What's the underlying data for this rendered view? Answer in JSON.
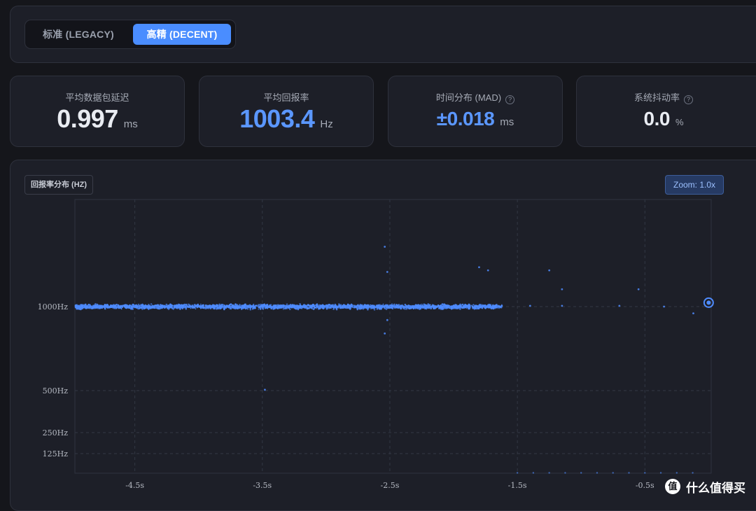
{
  "mode_switch": {
    "legacy_label": "标准 (LEGACY)",
    "decent_label": "高精 (DECENT)",
    "selected": "decent"
  },
  "stats": {
    "latency": {
      "label": "平均数据包延迟",
      "value": "0.997",
      "unit": "ms"
    },
    "rate": {
      "label": "平均回报率",
      "value": "1003.4",
      "unit": "Hz"
    },
    "mad": {
      "label": "时间分布 (MAD)",
      "value": "±0.018",
      "unit": "ms",
      "help_icon": "question-circle-icon"
    },
    "jitter": {
      "label": "系统抖动率",
      "value": "0.0",
      "unit": "%",
      "help_icon": "question-circle-icon"
    }
  },
  "chart": {
    "badge": "回报率分布 (HZ)",
    "zoom": "Zoom: 1.0x"
  },
  "colors": {
    "accent": "#4a8dff",
    "point": "#4f8cff",
    "background": "#15161b",
    "panel": "#1d1f28"
  },
  "chart_data": {
    "type": "scatter",
    "y_tick_labels": [
      "1000Hz",
      "500Hz",
      "250Hz",
      "125Hz"
    ],
    "y_ticks": [
      1000,
      500,
      250,
      125
    ],
    "x_tick_labels": [
      "-4.5s",
      "-3.5s",
      "-2.5s",
      "-1.5s",
      "-0.5s"
    ],
    "x_ticks": [
      -4.5,
      -3.5,
      -2.5,
      -1.5,
      -0.5
    ],
    "xlim": [
      -4.97,
      0.02
    ],
    "dense_range": [
      -4.97,
      -1.62
    ],
    "dense_center_hz": 1000,
    "outliers": [
      {
        "x": -2.54,
        "y": 1380
      },
      {
        "x": -2.52,
        "y": 1220
      },
      {
        "x": -1.8,
        "y": 1250
      },
      {
        "x": -1.73,
        "y": 1230
      },
      {
        "x": -1.25,
        "y": 1230
      },
      {
        "x": -1.15,
        "y": 1110
      },
      {
        "x": -0.55,
        "y": 1110
      },
      {
        "x": -2.52,
        "y": 920
      },
      {
        "x": -2.54,
        "y": 840
      },
      {
        "x": -3.48,
        "y": 505
      },
      {
        "x": -1.4,
        "y": 1005
      },
      {
        "x": -1.15,
        "y": 1005
      },
      {
        "x": -0.7,
        "y": 1005
      },
      {
        "x": -0.35,
        "y": 1000
      },
      {
        "x": -0.12,
        "y": 960
      }
    ],
    "latest_point": {
      "x": 0.0,
      "y": 1025
    },
    "grid": true
  }
}
